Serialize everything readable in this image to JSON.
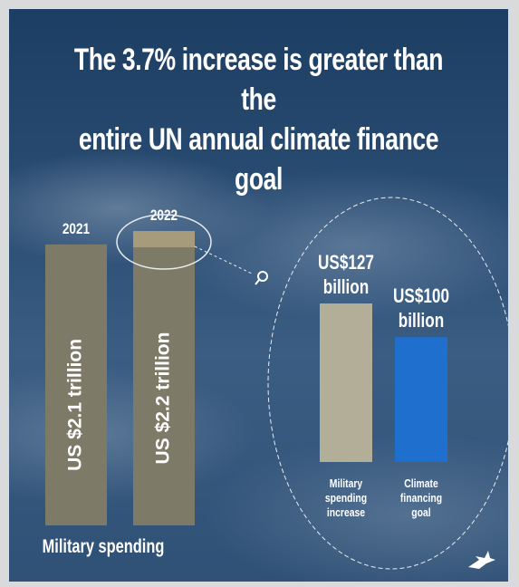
{
  "title_line1": "The 3.7% increase is greater than the",
  "title_line2": "entire UN annual climate finance goal",
  "chart_data": [
    {
      "type": "bar",
      "categories": [
        "2021",
        "2022"
      ],
      "values": [
        2.1,
        2.2
      ],
      "value_labels": [
        "US $2.1 trillion",
        "US $2.2 trillion"
      ],
      "xlabel": "Military spending",
      "unit": "US$ trillion",
      "colors": [
        "#7d7a68",
        "#7d7a68"
      ],
      "highlight_color": "#a69c7c"
    },
    {
      "type": "bar",
      "categories": [
        "Military spending increase",
        "Climate financing goal"
      ],
      "category_lines": [
        [
          "Military",
          "spending",
          "increase"
        ],
        [
          "Climate",
          "financing",
          "goal"
        ]
      ],
      "values": [
        127,
        100
      ],
      "value_labels": [
        [
          "US$127",
          "billion"
        ],
        [
          "US$100",
          "billion"
        ]
      ],
      "unit": "US$ billion",
      "colors": [
        "#b3ae98",
        "#1f6fcf"
      ]
    }
  ],
  "icons": {
    "zoom": "magnifier-icon",
    "logo": "dove-logo-icon"
  }
}
